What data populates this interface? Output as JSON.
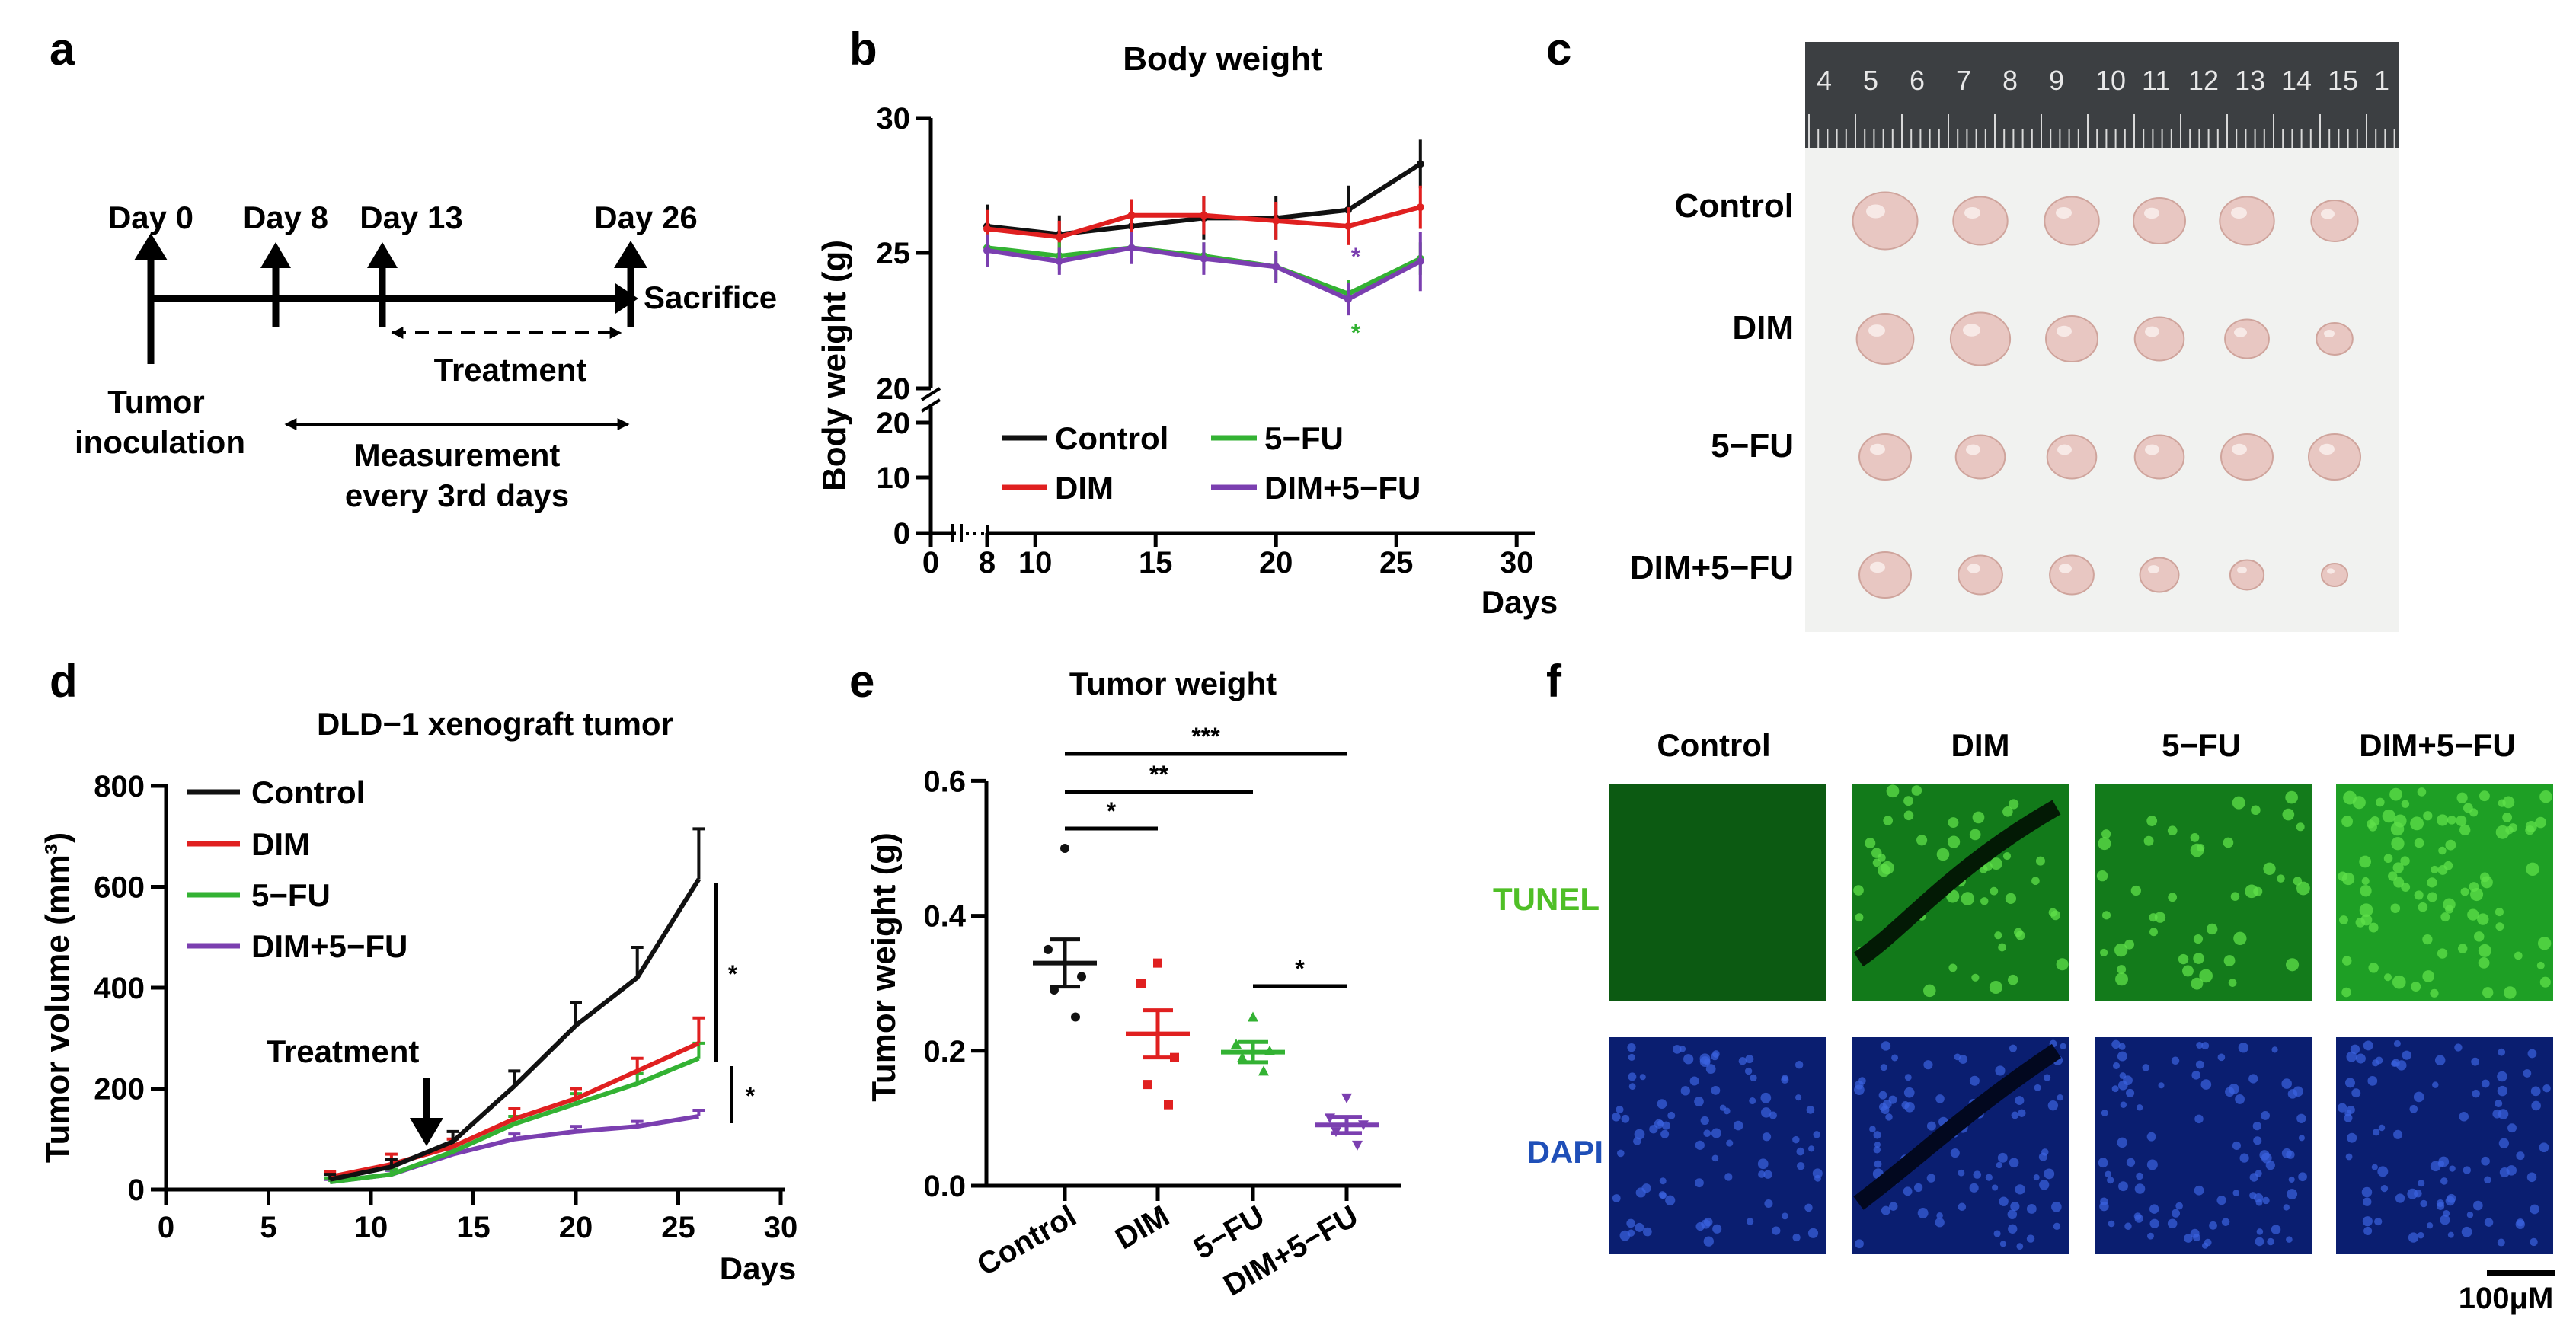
{
  "panel_labels": {
    "a": "a",
    "b": "b",
    "c": "c",
    "d": "d",
    "e": "e",
    "f": "f"
  },
  "colors": {
    "control": "#111111",
    "dim": "#e02020",
    "fu": "#33b233",
    "dimfu": "#7b3fb0",
    "tunel_label": "#4fbf26",
    "dapi_label": "#1f4fb8",
    "tunel_bg": "#0b4a10",
    "dapi_bg": "#0a1e70"
  },
  "timeline": {
    "day0": "Day 0",
    "day8": "Day 8",
    "day13": "Day 13",
    "day26": "Day 26",
    "sacrifice": "Sacrifice",
    "treatment": "Treatment",
    "tumor": "Tumor",
    "inoculation": "inoculation",
    "measurement": "Measurement",
    "every": "every 3rd days"
  },
  "legend": {
    "control": "Control",
    "dim": "DIM",
    "fu": "5−FU",
    "dimfu": "DIM+5−FU"
  },
  "photo": {
    "ruler_numbers": [
      "4",
      "5",
      "6",
      "7",
      "8",
      "9",
      "10",
      "11",
      "12",
      "13",
      "14",
      "15",
      "1"
    ],
    "rows": [
      "Control",
      "DIM",
      "5−FU",
      "DIM+5−FU"
    ]
  },
  "chart_data": [
    {
      "panel": "b",
      "type": "line",
      "title": "Body weight",
      "xlabel": "Days",
      "ylabel": "Body weight (g)",
      "xticks": [
        "0",
        "8",
        "10",
        "15",
        "20",
        "25",
        "30"
      ],
      "yticks_upper": [
        "20",
        "25",
        "30"
      ],
      "yticks_lower": [
        "0",
        "10",
        "20"
      ],
      "ylim_upper": [
        20,
        30
      ],
      "ylim_lower": [
        0,
        20
      ],
      "x": [
        8,
        11,
        14,
        17,
        20,
        23,
        26
      ],
      "series": [
        {
          "name": "Control",
          "values": [
            26.0,
            25.7,
            26.0,
            26.3,
            26.3,
            26.6,
            28.3
          ],
          "err": [
            0.8,
            0.7,
            0.8,
            0.8,
            0.8,
            0.9,
            0.9
          ]
        },
        {
          "name": "DIM",
          "values": [
            25.9,
            25.6,
            26.4,
            26.4,
            26.2,
            26.0,
            26.7
          ],
          "err": [
            0.7,
            0.6,
            0.6,
            0.7,
            0.7,
            0.7,
            0.8
          ]
        },
        {
          "name": "5−FU",
          "values": [
            25.2,
            24.9,
            25.2,
            24.9,
            24.5,
            23.5,
            24.8
          ],
          "err": [
            0.5,
            0.5,
            0.5,
            0.5,
            0.5,
            0.5,
            0.6
          ]
        },
        {
          "name": "DIM+5−FU",
          "values": [
            25.1,
            24.7,
            25.2,
            24.8,
            24.5,
            23.3,
            24.7
          ],
          "err": [
            0.6,
            0.5,
            0.6,
            0.6,
            0.6,
            0.6,
            1.1
          ]
        }
      ],
      "annotations": [
        "*",
        "*"
      ]
    },
    {
      "panel": "d",
      "type": "line",
      "title": "DLD−1 xenograft tumor",
      "xlabel": "Days",
      "ylabel": "Tumor volume (mm³)",
      "xticks": [
        "0",
        "5",
        "10",
        "15",
        "20",
        "25",
        "30"
      ],
      "yticks": [
        "0",
        "200",
        "400",
        "600",
        "800"
      ],
      "xlim": [
        0,
        30
      ],
      "ylim": [
        0,
        800
      ],
      "x": [
        8,
        11,
        14,
        17,
        20,
        23,
        26
      ],
      "series": [
        {
          "name": "Control",
          "values": [
            20,
            45,
            95,
            205,
            325,
            420,
            615
          ],
          "err": [
            10,
            15,
            20,
            30,
            45,
            60,
            100
          ]
        },
        {
          "name": "DIM",
          "values": [
            25,
            50,
            85,
            140,
            180,
            235,
            290
          ],
          "err": [
            10,
            20,
            15,
            20,
            20,
            25,
            50
          ]
        },
        {
          "name": "5−FU",
          "values": [
            15,
            30,
            75,
            130,
            170,
            210,
            260
          ],
          "err": [
            8,
            10,
            15,
            15,
            20,
            20,
            30
          ]
        },
        {
          "name": "DIM+5−FU",
          "values": [
            15,
            30,
            70,
            100,
            115,
            125,
            145
          ],
          "err": [
            5,
            8,
            10,
            10,
            10,
            10,
            12
          ]
        }
      ],
      "annotations": [
        "Treatment",
        "*",
        "*"
      ]
    },
    {
      "panel": "e",
      "type": "scatter",
      "title": "Tumor weight",
      "ylabel": "Tumor weight (g)",
      "categories": [
        "Control",
        "DIM",
        "5−FU",
        "DIM+5−FU"
      ],
      "yticks": [
        "0.0",
        "0.2",
        "0.4",
        "0.6"
      ],
      "ylim": [
        0,
        0.6
      ],
      "means": [
        0.33,
        0.225,
        0.198,
        0.09
      ],
      "sem": [
        0.035,
        0.035,
        0.015,
        0.012
      ],
      "points": [
        [
          0.5,
          0.35,
          0.31,
          0.29,
          0.25
        ],
        [
          0.33,
          0.3,
          0.19,
          0.15,
          0.12
        ],
        [
          0.25,
          0.21,
          0.2,
          0.19,
          0.17
        ],
        [
          0.13,
          0.1,
          0.09,
          0.08,
          0.06
        ]
      ],
      "significance": [
        "*",
        "**",
        "***",
        "*"
      ]
    }
  ],
  "micrographs": {
    "columns": [
      "Control",
      "DIM",
      "5−FU",
      "DIM+5−FU"
    ],
    "rows": [
      "TUNEL",
      "DAPI"
    ],
    "scale": "100μM"
  }
}
